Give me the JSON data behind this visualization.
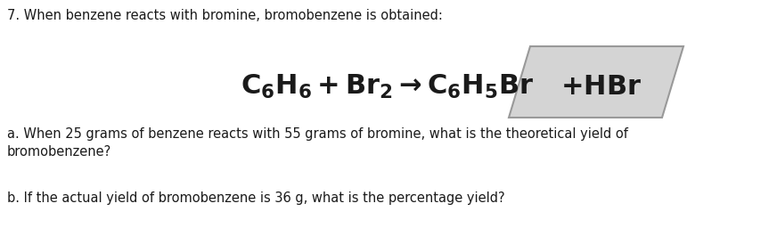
{
  "background_color": "#ffffff",
  "line1_text": "7. When benzene reacts with bromine, bromobenzene is obtained:",
  "line1_fontsize": 10.5,
  "equation_fontsize": 22,
  "equation_left": "$\\mathbf{C_6H_6 + Br_2 \\rightarrow C_6H_5Br}$",
  "equation_right": "$\\mathbf{+ HBr}$",
  "line_a_text": "a. When 25 grams of benzene reacts with 55 grams of bromine, what is the theoretical yield of",
  "line_a2_text": "bromobenzene?",
  "line_b_text": "b. If the actual yield of bromobenzene is 36 g, what is the percentage yield?",
  "body_fontsize": 10.5,
  "text_color": "#1a1a1a",
  "box_facecolor": "#d4d4d4",
  "box_edgecolor": "#999999"
}
